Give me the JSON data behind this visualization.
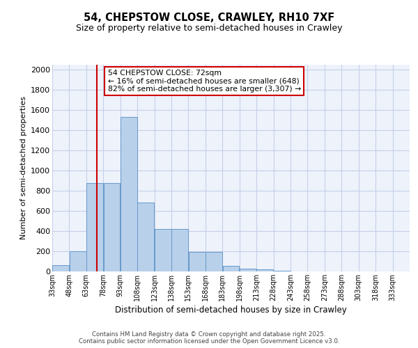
{
  "title_line1": "54, CHEPSTOW CLOSE, CRAWLEY, RH10 7XF",
  "title_line2": "Size of property relative to semi-detached houses in Crawley",
  "xlabel": "Distribution of semi-detached houses by size in Crawley",
  "ylabel": "Number of semi-detached properties",
  "footer1": "Contains HM Land Registry data © Crown copyright and database right 2025.",
  "footer2": "Contains public sector information licensed under the Open Government Licence v3.0.",
  "property_size": 72,
  "annotation_text": "54 CHEPSTOW CLOSE: 72sqm\n← 16% of semi-detached houses are smaller (648)\n82% of semi-detached houses are larger (3,307) →",
  "bar_left_edges": [
    33,
    48,
    63,
    78,
    93,
    108,
    123,
    138,
    153,
    168,
    183,
    198,
    213,
    228,
    243,
    258,
    273,
    288,
    303,
    318,
    333
  ],
  "bar_heights": [
    65,
    200,
    875,
    875,
    1530,
    680,
    420,
    420,
    195,
    195,
    55,
    25,
    20,
    10,
    0,
    0,
    0,
    0,
    0,
    0,
    0
  ],
  "bin_width": 15,
  "bar_fill_color": "#b8d0ea",
  "bar_edge_color": "#6699cc",
  "vline_color": "#cc0000",
  "vline_x": 72,
  "annotation_box_color": "#cc0000",
  "bg_color": "#eef2fb",
  "grid_color": "#c5cfe8",
  "ylim": [
    0,
    2050
  ],
  "yticks": [
    0,
    200,
    400,
    600,
    800,
    1000,
    1200,
    1400,
    1600,
    1800,
    2000
  ],
  "tick_labels": [
    "33sqm",
    "48sqm",
    "63sqm",
    "78sqm",
    "93sqm",
    "108sqm",
    "123sqm",
    "138sqm",
    "153sqm",
    "168sqm",
    "183sqm",
    "198sqm",
    "213sqm",
    "228sqm",
    "243sqm",
    "258sqm",
    "273sqm",
    "288sqm",
    "303sqm",
    "318sqm",
    "333sqm"
  ],
  "title1_fontsize": 10.5,
  "title2_fontsize": 9,
  "ylabel_fontsize": 8,
  "xlabel_fontsize": 8.5,
  "tick_fontsize": 7,
  "ytick_fontsize": 8,
  "annot_fontsize": 7.8,
  "footer_fontsize": 6.2
}
